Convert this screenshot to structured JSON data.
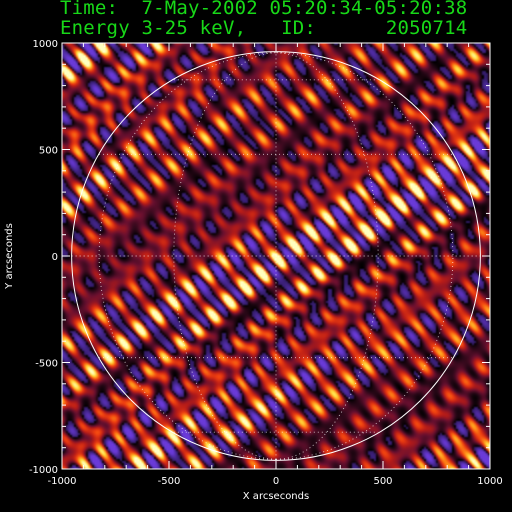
{
  "header": {
    "time_line": "Time:  7-May-2002 05:20:34-05:20:38",
    "energy_line": "Energy 3-25 keV,   ID:      2050714"
  },
  "colors": {
    "header_text": "#18d818",
    "axis": "#ffffff",
    "background": "#000000",
    "colormap": [
      "#000000",
      "#2a0818",
      "#6a1030",
      "#b81c18",
      "#f04010",
      "#ff9018",
      "#ffe040",
      "#ffffc0"
    ],
    "negative_lobe": "#6a3ad8"
  },
  "chart_data": {
    "type": "heatmap",
    "title": "",
    "xlabel": "X arcseconds",
    "ylabel": "Y arcseconds",
    "xlim": [
      -1000,
      1000
    ],
    "ylim": [
      -1000,
      1000
    ],
    "xticks": [
      -1000,
      -500,
      0,
      500,
      1000
    ],
    "yticks": [
      -1000,
      -500,
      0,
      500,
      1000
    ],
    "xtick_labels": [
      "-1000",
      "-500",
      "0",
      "500",
      "1000"
    ],
    "ytick_labels": [
      "-1000",
      "-500",
      "0",
      "500",
      "1000"
    ],
    "solar_limb_radius_arcsec": 955,
    "grid": "dotted heliographic grid",
    "image_content": "fringe pattern back-projection"
  }
}
